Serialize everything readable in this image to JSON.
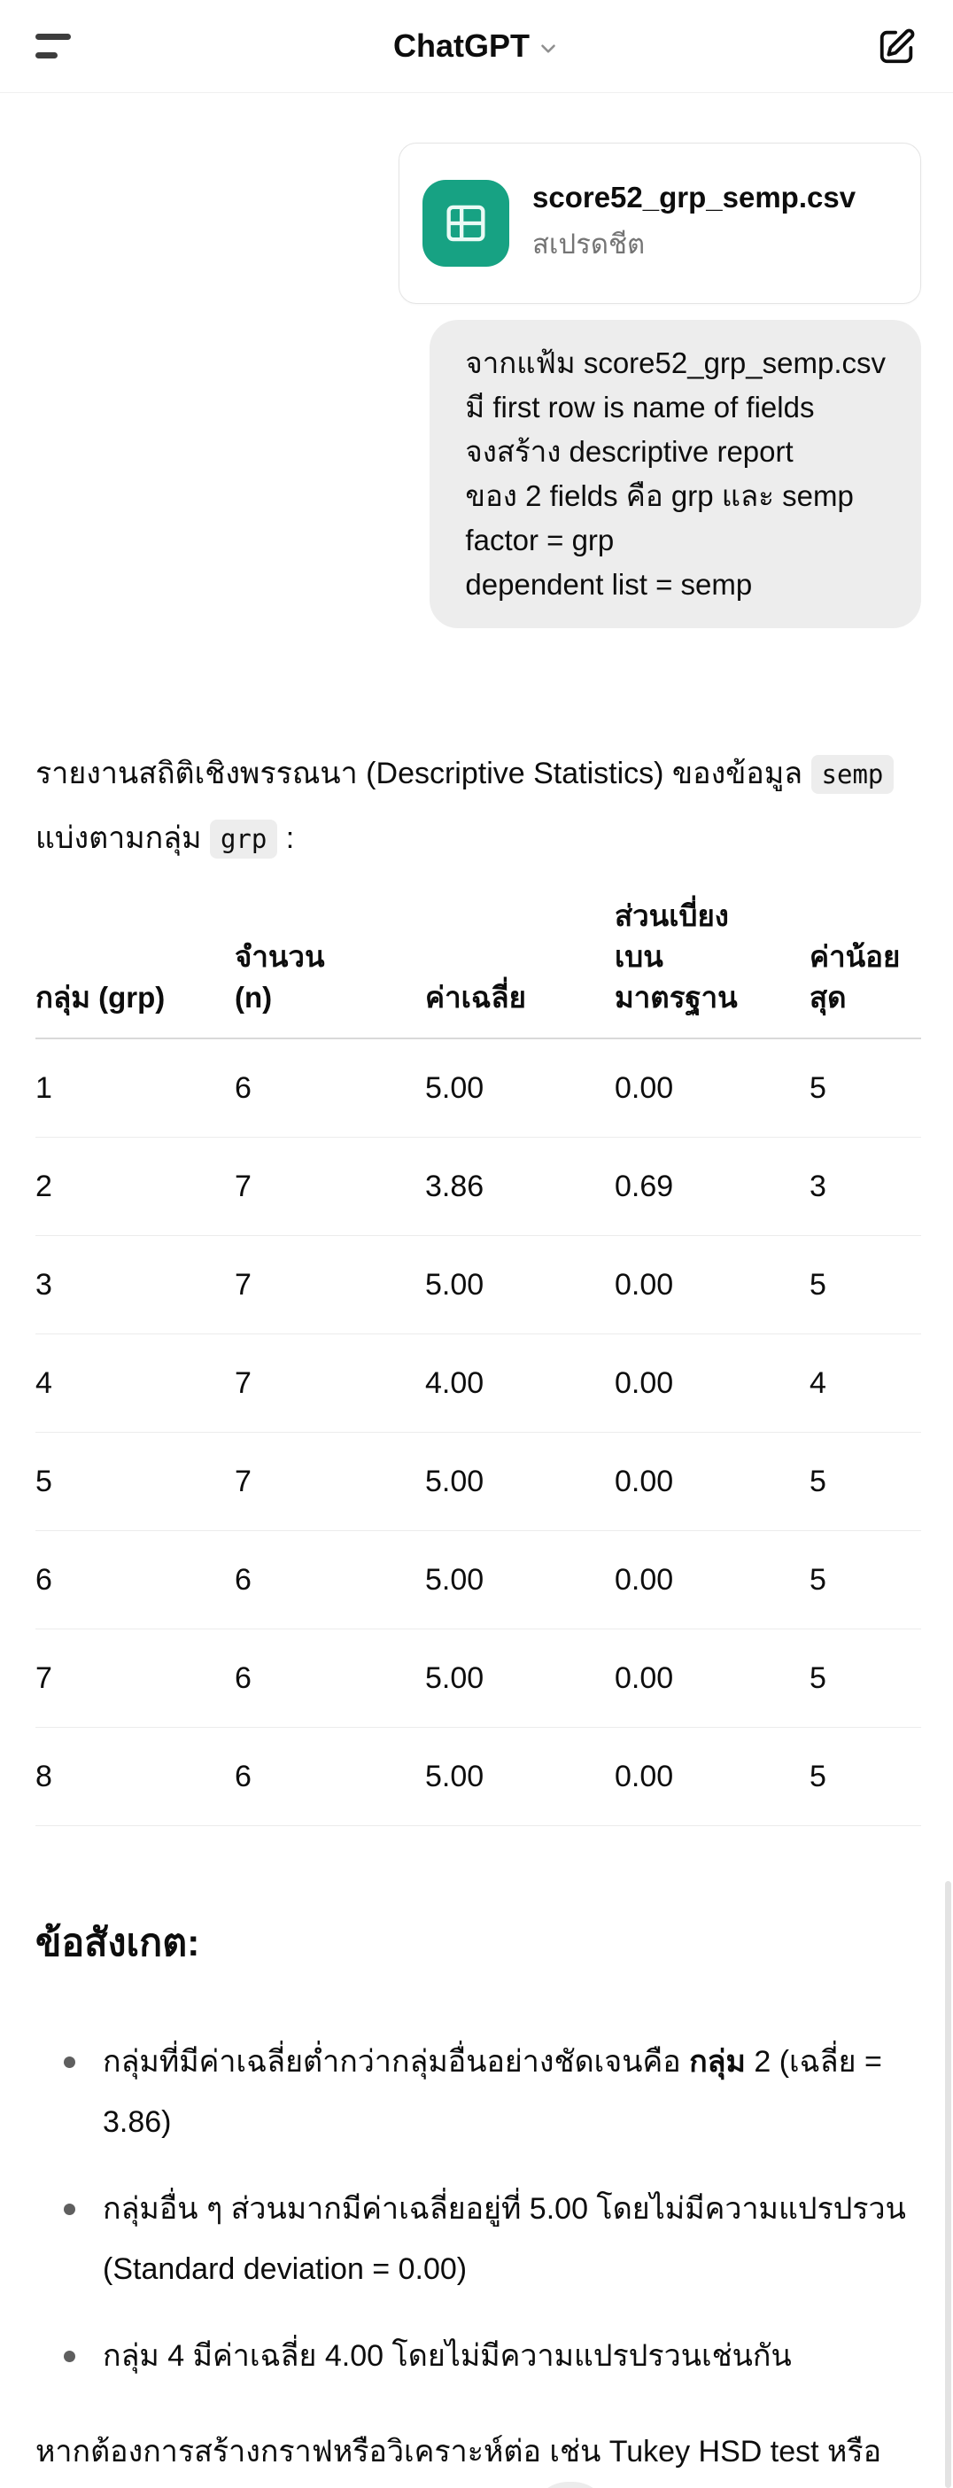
{
  "header": {
    "title": "ChatGPT"
  },
  "icons": {
    "menu": "sidebar-menu-icon",
    "chevron": "chevron-down-icon",
    "compose": "new-chat-compose-icon",
    "spreadsheet": "spreadsheet-icon"
  },
  "colors": {
    "accent_green": "#17a283",
    "bubble_gray": "#ededed",
    "text": "#0d0d0d"
  },
  "attachment": {
    "filename": "score52_grp_semp.csv",
    "type_label": "สเปรดชีต"
  },
  "user_message": {
    "lines": [
      "จากแฟ้ม score52_grp_semp.csv",
      "มี first row is name of fields",
      "จงสร้าง descriptive report",
      "ของ 2 fields คือ grp และ semp",
      "factor = grp",
      "dependent list = semp"
    ]
  },
  "assistant": {
    "intro": {
      "before_code1": "รายงานสถิติเชิงพรรณนา (Descriptive Statistics) ของข้อมูล ",
      "code1": "semp",
      "between": " แบ่งตามกลุ่ม ",
      "code2": "grp",
      "after": " :"
    },
    "table": {
      "headers": [
        [
          "กลุ่ม (grp)"
        ],
        [
          "จำนวน",
          "(n)"
        ],
        [
          "ค่าเฉลี่ย"
        ],
        [
          "ส่วนเบี่ยง",
          "เบน",
          "มาตรฐาน"
        ],
        [
          "ค่าน้อย",
          "สุด"
        ]
      ],
      "rows": [
        [
          "1",
          "6",
          "5.00",
          "0.00",
          "5"
        ],
        [
          "2",
          "7",
          "3.86",
          "0.69",
          "3"
        ],
        [
          "3",
          "7",
          "5.00",
          "0.00",
          "5"
        ],
        [
          "4",
          "7",
          "4.00",
          "0.00",
          "4"
        ],
        [
          "5",
          "7",
          "5.00",
          "0.00",
          "5"
        ],
        [
          "6",
          "6",
          "5.00",
          "0.00",
          "5"
        ],
        [
          "7",
          "6",
          "5.00",
          "0.00",
          "5"
        ],
        [
          "8",
          "6",
          "5.00",
          "0.00",
          "5"
        ]
      ]
    },
    "observations_heading": "ข้อสังเกต:",
    "bullets": {
      "b1": {
        "pre": "กลุ่มที่มีค่าเฉลี่ยต่ำกว่ากลุ่มอื่นอย่างชัดเจนคือ ",
        "bold": "กลุ่ม",
        "post": " 2 (เฉลี่ย = 3.86)"
      },
      "b2": "กลุ่มอื่น ๆ ส่วนมากมีค่าเฉลี่ยอยู่ที่ 5.00 โดยไม่มีความแปรปรวน (Standard deviation = 0.00)",
      "b3": "กลุ่ม 4 มีค่าเฉลี่ย 4.00 โดยไม่มีความแปรปรวนเช่นกัน"
    },
    "closing": {
      "text": "หากต้องการสร้างกราฟหรือวิเคราะห์ต่อ เช่น Tukey HSD test หรือ boxplot กรุณาบอกเพิ่มเติมได้เลยครับ.",
      "code_badge": "</>"
    }
  }
}
